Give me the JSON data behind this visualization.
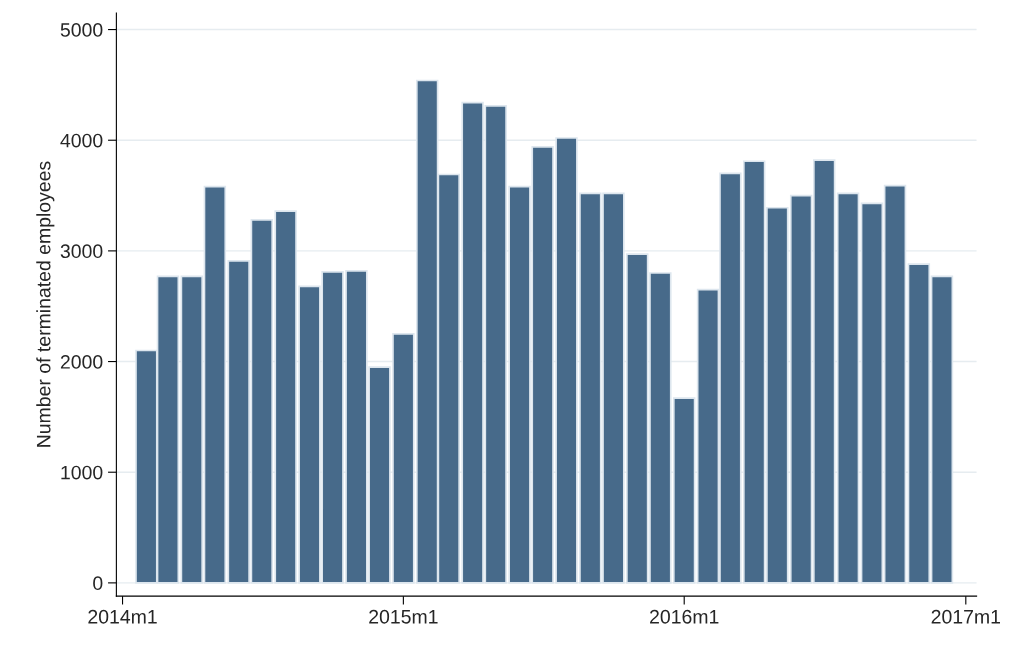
{
  "chart_data": {
    "type": "bar",
    "ylabel": "Number of terminated employees",
    "x": [
      "2014-02",
      "2014-03",
      "2014-04",
      "2014-05",
      "2014-06",
      "2014-07",
      "2014-08",
      "2014-09",
      "2014-10",
      "2014-11",
      "2014-12",
      "2015-01",
      "2015-02",
      "2015-03",
      "2015-04",
      "2015-05",
      "2015-06",
      "2015-07",
      "2015-08",
      "2015-09",
      "2015-10",
      "2015-11",
      "2015-12",
      "2016-01",
      "2016-02",
      "2016-03",
      "2016-04",
      "2016-05",
      "2016-06",
      "2016-07",
      "2016-08",
      "2016-09",
      "2016-10",
      "2016-11",
      "2016-12"
    ],
    "values": [
      2100,
      2770,
      2770,
      3580,
      2910,
      3280,
      3360,
      2680,
      2810,
      2820,
      1950,
      2250,
      4540,
      3690,
      4340,
      4310,
      3580,
      3940,
      4020,
      3520,
      3520,
      2970,
      2800,
      1670,
      2650,
      3700,
      3810,
      3390,
      3500,
      3820,
      3520,
      3430,
      3590,
      2880,
      2770
    ],
    "color": "#476a8a",
    "xlim": [
      "2013-12-24",
      "2017-01-15"
    ],
    "xticks": [
      {
        "value": "2014-01",
        "label": "2014m1"
      },
      {
        "value": "2015-01",
        "label": "2015m1"
      },
      {
        "value": "2016-01",
        "label": "2016m1"
      },
      {
        "value": "2017-01",
        "label": "2017m1"
      }
    ],
    "ylim": [
      -120,
      5150
    ],
    "yticks": [
      0,
      1000,
      2000,
      3000,
      4000,
      5000
    ],
    "grid": "y"
  }
}
